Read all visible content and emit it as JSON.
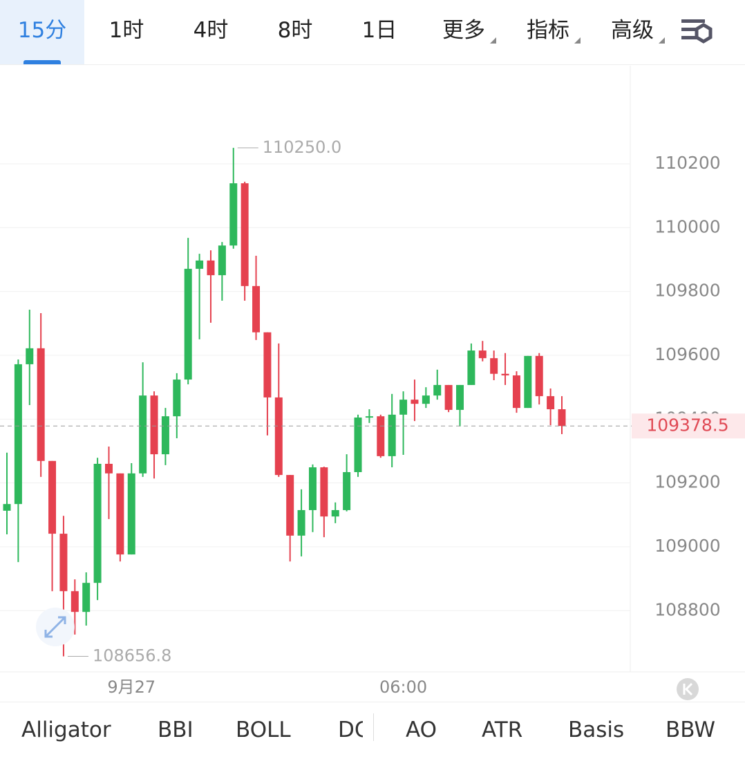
{
  "timeframes": [
    "15分",
    "1时",
    "4时",
    "8时",
    "1日"
  ],
  "menus": [
    "更多",
    "指标",
    "高级"
  ],
  "indicators": [
    "Alligator",
    "BBI",
    "BOLL",
    "DC",
    "AO",
    "ATR",
    "Basis",
    "BBW"
  ],
  "chart_data": {
    "type": "candlestick",
    "up_color": "#2eb85c",
    "down_color": "#e5414f",
    "grid": true,
    "categories": [
      null,
      null,
      null,
      null,
      null,
      null,
      null,
      null,
      null,
      null,
      null,
      "9月27",
      null,
      null,
      null,
      null,
      null,
      null,
      null,
      null,
      null,
      null,
      null,
      null,
      null,
      null,
      null,
      null,
      null,
      null,
      null,
      null,
      null,
      null,
      null,
      "06:00",
      null,
      null,
      null,
      null,
      null,
      null,
      null,
      null,
      null,
      null,
      null,
      null,
      null,
      null
    ],
    "open": [
      109113,
      109134,
      109572,
      109622,
      109269,
      109041,
      108861,
      108796,
      108887,
      109260,
      109230,
      108976,
      109230,
      109474,
      109290,
      109409,
      109524,
      109871,
      109897,
      109851,
      109944,
      110139,
      109817,
      109672,
      109468,
      109225,
      109035,
      109115,
      109249,
      109095,
      109115,
      109234,
      109405,
      109409,
      109284,
      109414,
      109461,
      109448,
      109474,
      109507,
      109429,
      109507,
      109615,
      109591,
      109542,
      109537,
      109435,
      109598,
      109472,
      109431
    ],
    "high": [
      109295,
      109587,
      109743,
      109732,
      109269,
      109097,
      108898,
      108920,
      109279,
      109314,
      109230,
      109262,
      109578,
      109487,
      109435,
      109544,
      109968,
      109918,
      109929,
      109955,
      110250,
      110144,
      109912,
      109672,
      109637,
      109225,
      109180,
      109258,
      109251,
      109139,
      109290,
      109414,
      109431,
      109414,
      109479,
      109487,
      109524,
      109500,
      109555,
      109507,
      109507,
      109637,
      109645,
      109615,
      109607,
      109550,
      109598,
      109607,
      109496,
      109472
    ],
    "low": [
      109039,
      108952,
      109444,
      109219,
      108861,
      108656.8,
      108725,
      108753,
      108833,
      109087,
      108954,
      108976,
      109219,
      109214,
      109256,
      109340,
      109509,
      109650,
      109702,
      109771,
      109934,
      109771,
      109648,
      109349,
      109219,
      108954,
      108970,
      109046,
      109030,
      109074,
      109111,
      109219,
      109388,
      109279,
      109249,
      109288,
      109394,
      109435,
      109461,
      109422,
      109377,
      109507,
      109581,
      109522,
      109507,
      109420,
      109435,
      109446,
      109381,
      109353
    ],
    "close": [
      109134,
      109572,
      109622,
      109269,
      109041,
      108861,
      108796,
      108887,
      109260,
      109230,
      108976,
      109230,
      109474,
      109290,
      109409,
      109524,
      109871,
      109897,
      109851,
      109944,
      110139,
      109817,
      109672,
      109468,
      109225,
      109035,
      109115,
      109249,
      109095,
      109115,
      109234,
      109405,
      109409,
      109284,
      109414,
      109461,
      109448,
      109474,
      109507,
      109429,
      109507,
      109615,
      109591,
      109542,
      109537,
      109435,
      109598,
      109472,
      109431,
      109378.5
    ],
    "ylim": [
      108608,
      110507.5
    ],
    "yticks": [
      108800,
      109000,
      109200,
      109400,
      109600,
      109800,
      110000,
      110200
    ],
    "max_label": {
      "value": 110250,
      "label": "110250.0"
    },
    "min_label": 108656.8,
    "last_price": 109378.5
  }
}
